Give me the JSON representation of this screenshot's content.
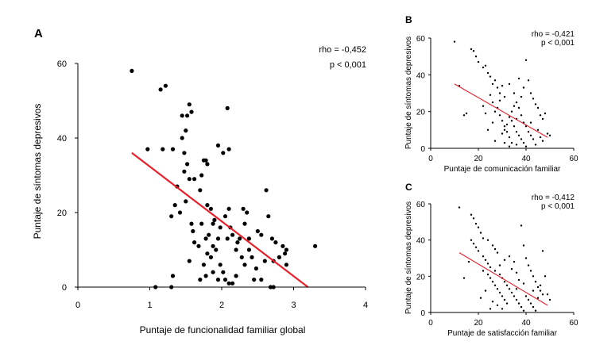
{
  "chart_data": [
    {
      "panel": "A",
      "type": "scatter",
      "xlabel": "Puntaje de funcionalidad familiar global",
      "ylabel": "Puntaje de síntomas depresivos",
      "xlim": [
        0,
        4
      ],
      "ylim": [
        0,
        60
      ],
      "xticks": [
        "0",
        "1",
        "2",
        "3",
        "4"
      ],
      "yticks": [
        "0",
        "20",
        "40",
        "60"
      ],
      "annotations": [
        "rho = -0,452",
        "p < 0,001"
      ],
      "fit_line": {
        "x": [
          0.75,
          3.2
        ],
        "y": [
          36,
          0
        ],
        "color": "#e8202a"
      },
      "points": [
        [
          0.75,
          58
        ],
        [
          1.15,
          53
        ],
        [
          1.22,
          54
        ],
        [
          0.97,
          37
        ],
        [
          1.18,
          37
        ],
        [
          1.32,
          37
        ],
        [
          1.38,
          27
        ],
        [
          1.45,
          40
        ],
        [
          1.45,
          46
        ],
        [
          1.48,
          31
        ],
        [
          1.5,
          42
        ],
        [
          1.52,
          46
        ],
        [
          1.55,
          49
        ],
        [
          1.58,
          47
        ],
        [
          1.48,
          36
        ],
        [
          1.52,
          33
        ],
        [
          1.55,
          29
        ],
        [
          1.62,
          29
        ],
        [
          1.35,
          22
        ],
        [
          1.42,
          20
        ],
        [
          1.5,
          23
        ],
        [
          1.3,
          19
        ],
        [
          1.58,
          17
        ],
        [
          1.6,
          15
        ],
        [
          1.55,
          7
        ],
        [
          1.32,
          3
        ],
        [
          1.3,
          0
        ],
        [
          1.08,
          0
        ],
        [
          1.7,
          26
        ],
        [
          1.72,
          30
        ],
        [
          1.75,
          34
        ],
        [
          1.78,
          34
        ],
        [
          1.8,
          33
        ],
        [
          1.8,
          22
        ],
        [
          1.85,
          21
        ],
        [
          1.88,
          17
        ],
        [
          1.72,
          17
        ],
        [
          1.78,
          13
        ],
        [
          1.82,
          14
        ],
        [
          1.9,
          18
        ],
        [
          1.95,
          38
        ],
        [
          2.02,
          36
        ],
        [
          2.1,
          37
        ],
        [
          2.08,
          48
        ],
        [
          1.98,
          16
        ],
        [
          2.05,
          19
        ],
        [
          2.1,
          21
        ],
        [
          2.12,
          16
        ],
        [
          2.15,
          14
        ],
        [
          2.08,
          13
        ],
        [
          1.95,
          13
        ],
        [
          1.88,
          11
        ],
        [
          1.8,
          9
        ],
        [
          1.85,
          8
        ],
        [
          1.92,
          10
        ],
        [
          1.98,
          6
        ],
        [
          2.02,
          4
        ],
        [
          2.05,
          2
        ],
        [
          2.1,
          1
        ],
        [
          1.95,
          2
        ],
        [
          1.88,
          4
        ],
        [
          1.7,
          2
        ],
        [
          1.75,
          6
        ],
        [
          1.78,
          3
        ],
        [
          1.68,
          11
        ],
        [
          1.62,
          12
        ],
        [
          2.2,
          10
        ],
        [
          2.22,
          12
        ],
        [
          2.25,
          13
        ],
        [
          2.3,
          21
        ],
        [
          2.32,
          17
        ],
        [
          2.35,
          20
        ],
        [
          2.38,
          13
        ],
        [
          2.28,
          8
        ],
        [
          2.32,
          6
        ],
        [
          2.38,
          10
        ],
        [
          2.42,
          8
        ],
        [
          2.48,
          5
        ],
        [
          2.45,
          2
        ],
        [
          2.2,
          3
        ],
        [
          2.15,
          1
        ],
        [
          2.5,
          15
        ],
        [
          2.55,
          14
        ],
        [
          2.6,
          7
        ],
        [
          2.62,
          26
        ],
        [
          2.65,
          19
        ],
        [
          2.7,
          13
        ],
        [
          2.72,
          7
        ],
        [
          2.75,
          12
        ],
        [
          2.8,
          8
        ],
        [
          2.85,
          11
        ],
        [
          2.88,
          9
        ],
        [
          2.9,
          10
        ],
        [
          2.72,
          0
        ],
        [
          2.68,
          0
        ],
        [
          3.3,
          11
        ],
        [
          2.9,
          6
        ],
        [
          2.55,
          2
        ]
      ]
    },
    {
      "panel": "B",
      "type": "scatter",
      "xlabel": "Puntaje de comunicación familiar",
      "ylabel": "Puntaje de síntomas depresivos",
      "xlim": [
        0,
        60
      ],
      "ylim": [
        0,
        60
      ],
      "xticks": [
        "0",
        "20",
        "40",
        "60"
      ],
      "yticks": [
        "0",
        "20",
        "40",
        "60"
      ],
      "annotations": [
        "rho = -0,421",
        "p < 0,001"
      ],
      "fit_line": {
        "x": [
          10,
          49
        ],
        "y": [
          35,
          6
        ],
        "color": "#e8202a"
      },
      "points": [
        [
          10,
          58
        ],
        [
          12,
          34
        ],
        [
          14,
          18
        ],
        [
          15,
          19
        ],
        [
          17,
          54
        ],
        [
          18,
          53
        ],
        [
          19,
          50
        ],
        [
          20,
          47
        ],
        [
          22,
          44
        ],
        [
          23,
          45
        ],
        [
          24,
          41
        ],
        [
          22,
          23
        ],
        [
          23,
          19
        ],
        [
          25,
          39
        ],
        [
          26,
          35
        ],
        [
          27,
          37
        ],
        [
          28,
          33
        ],
        [
          29,
          30
        ],
        [
          30,
          34
        ],
        [
          31,
          28
        ],
        [
          25,
          29
        ],
        [
          26,
          25
        ],
        [
          27,
          20
        ],
        [
          28,
          22
        ],
        [
          29,
          18
        ],
        [
          30,
          15
        ],
        [
          31,
          12
        ],
        [
          32,
          9
        ],
        [
          33,
          6
        ],
        [
          34,
          3
        ],
        [
          30,
          8
        ],
        [
          31,
          10
        ],
        [
          32,
          13
        ],
        [
          33,
          17
        ],
        [
          34,
          20
        ],
        [
          35,
          23
        ],
        [
          36,
          25
        ],
        [
          37,
          22
        ],
        [
          38,
          18
        ],
        [
          39,
          14
        ],
        [
          35,
          12
        ],
        [
          36,
          9
        ],
        [
          37,
          7
        ],
        [
          38,
          5
        ],
        [
          39,
          3
        ],
        [
          40,
          1
        ],
        [
          36,
          2
        ],
        [
          37,
          38
        ],
        [
          33,
          35
        ],
        [
          35,
          30
        ],
        [
          40,
          48
        ],
        [
          41,
          37
        ],
        [
          42,
          30
        ],
        [
          43,
          27
        ],
        [
          44,
          24
        ],
        [
          45,
          22
        ],
        [
          46,
          18
        ],
        [
          47,
          16
        ],
        [
          40,
          12
        ],
        [
          41,
          9
        ],
        [
          42,
          7
        ],
        [
          43,
          5
        ],
        [
          44,
          2
        ],
        [
          45,
          10
        ],
        [
          46,
          6
        ],
        [
          47,
          4
        ],
        [
          48,
          19
        ],
        [
          49,
          8
        ],
        [
          50,
          7
        ],
        [
          38,
          28
        ],
        [
          39,
          33
        ],
        [
          34,
          15
        ],
        [
          29,
          26
        ],
        [
          26,
          14
        ],
        [
          24,
          10
        ],
        [
          27,
          4
        ],
        [
          31,
          3
        ],
        [
          33,
          1
        ],
        [
          36,
          16
        ],
        [
          42,
          14
        ]
      ]
    },
    {
      "panel": "C",
      "type": "scatter",
      "xlabel": "Puntaje de satisfacción familiar",
      "ylabel": "Puntaje de síntomas depresivos",
      "xlim": [
        0,
        60
      ],
      "ylim": [
        0,
        60
      ],
      "xticks": [
        "0",
        "20",
        "40",
        "60"
      ],
      "yticks": [
        "0",
        "20",
        "40",
        "60"
      ],
      "annotations": [
        "rho = -0,412",
        "p < 0,001"
      ],
      "fit_line": {
        "x": [
          12,
          49
        ],
        "y": [
          33,
          4
        ],
        "color": "#e8202a"
      },
      "points": [
        [
          12,
          58
        ],
        [
          14,
          19
        ],
        [
          16,
          28
        ],
        [
          17,
          54
        ],
        [
          18,
          52
        ],
        [
          19,
          49
        ],
        [
          20,
          47
        ],
        [
          21,
          44
        ],
        [
          22,
          41
        ],
        [
          24,
          40
        ],
        [
          17,
          40
        ],
        [
          18,
          38
        ],
        [
          19,
          36
        ],
        [
          20,
          34
        ],
        [
          22,
          31
        ],
        [
          23,
          29
        ],
        [
          24,
          27
        ],
        [
          26,
          37
        ],
        [
          27,
          35
        ],
        [
          28,
          33
        ],
        [
          22,
          23
        ],
        [
          24,
          21
        ],
        [
          25,
          19
        ],
        [
          26,
          17
        ],
        [
          27,
          15
        ],
        [
          28,
          13
        ],
        [
          29,
          11
        ],
        [
          30,
          9
        ],
        [
          31,
          7
        ],
        [
          32,
          5
        ],
        [
          25,
          25
        ],
        [
          27,
          23
        ],
        [
          29,
          21
        ],
        [
          30,
          19
        ],
        [
          31,
          17
        ],
        [
          32,
          15
        ],
        [
          33,
          13
        ],
        [
          34,
          11
        ],
        [
          35,
          9
        ],
        [
          36,
          7
        ],
        [
          37,
          5
        ],
        [
          38,
          3
        ],
        [
          39,
          1
        ],
        [
          30,
          2
        ],
        [
          28,
          4
        ],
        [
          26,
          6
        ],
        [
          33,
          31
        ],
        [
          35,
          28
        ],
        [
          36,
          22
        ],
        [
          37,
          18
        ],
        [
          38,
          48
        ],
        [
          39,
          37
        ],
        [
          40,
          30
        ],
        [
          41,
          26
        ],
        [
          42,
          23
        ],
        [
          43,
          20
        ],
        [
          44,
          17
        ],
        [
          45,
          14
        ],
        [
          46,
          12
        ],
        [
          47,
          10
        ],
        [
          40,
          9
        ],
        [
          41,
          7
        ],
        [
          42,
          5
        ],
        [
          43,
          3
        ],
        [
          44,
          1
        ],
        [
          45,
          8
        ],
        [
          46,
          15
        ],
        [
          47,
          34
        ],
        [
          48,
          20
        ],
        [
          49,
          10
        ],
        [
          50,
          7
        ],
        [
          36,
          13
        ],
        [
          34,
          24
        ],
        [
          31,
          29
        ],
        [
          29,
          26
        ],
        [
          23,
          12
        ],
        [
          21,
          8
        ],
        [
          25,
          2
        ],
        [
          39,
          16
        ],
        [
          43,
          12
        ]
      ]
    }
  ]
}
